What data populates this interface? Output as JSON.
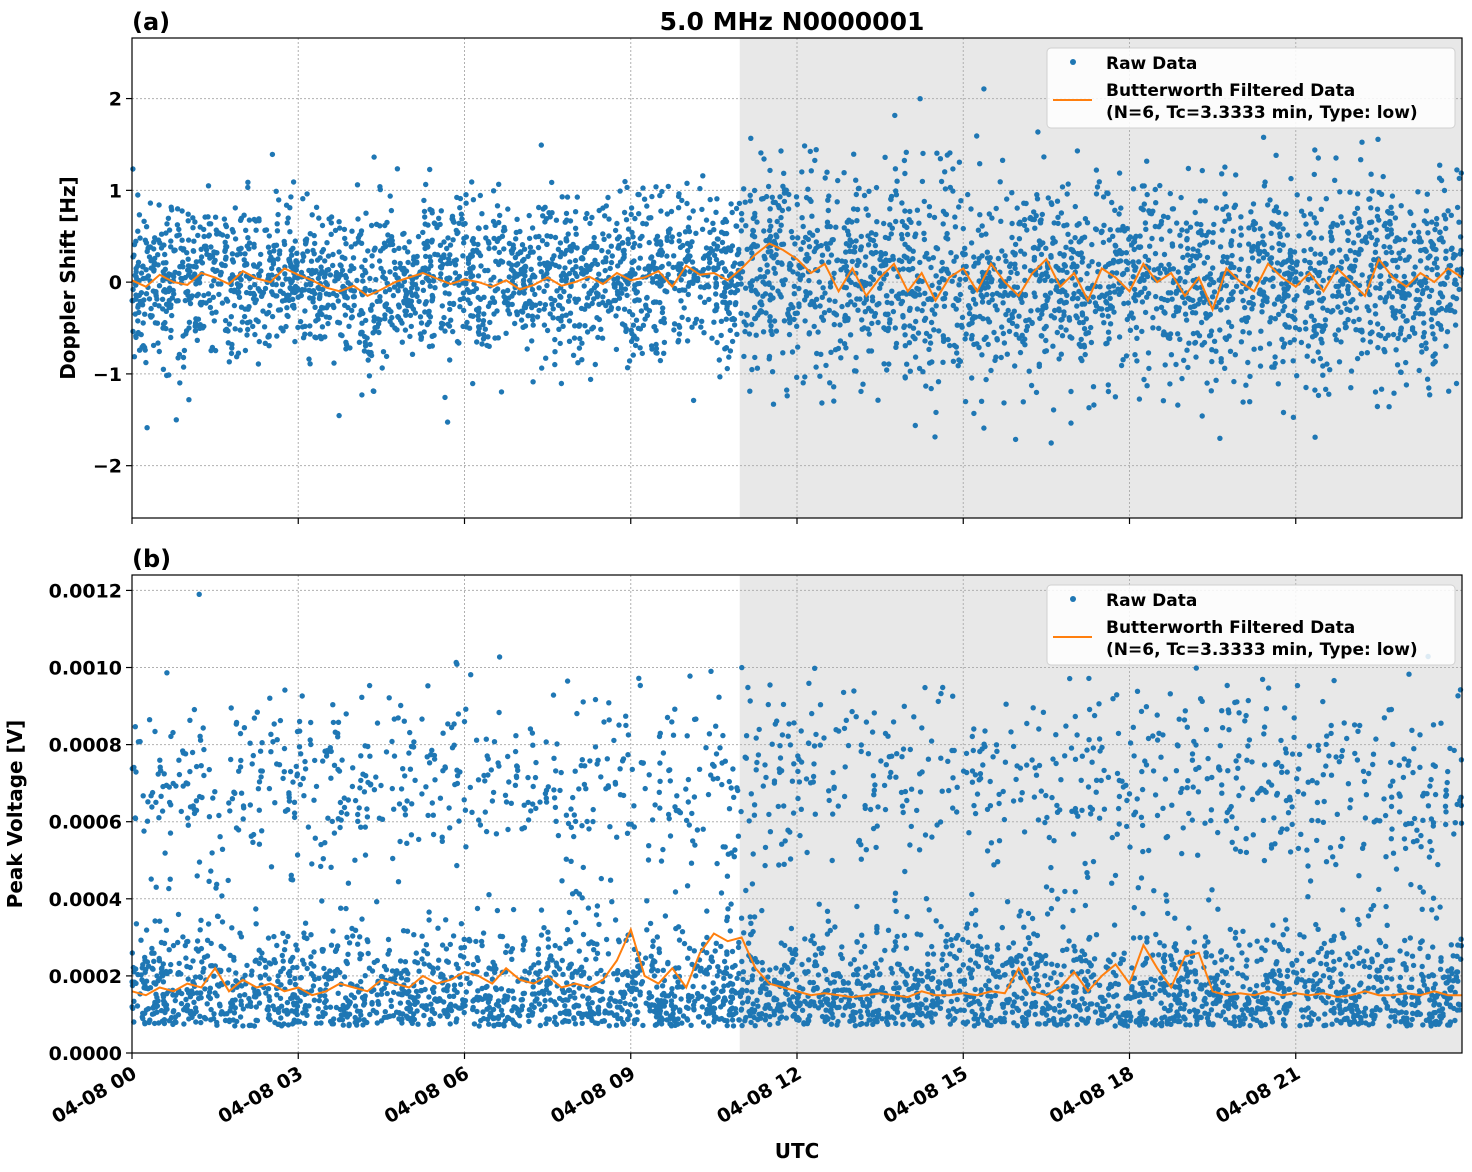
{
  "title": "5.0 MHz N0000001",
  "colors": {
    "raw": "#1f77b4",
    "filtered": "#ff7f0e",
    "shade": "#e8e8e8"
  },
  "chart_data": [
    {
      "type": "scatter",
      "panel_label": "(a)",
      "ylabel": "Doppler Shift [Hz]",
      "ylim": [
        -2.57,
        2.66
      ],
      "xlim": [
        "04-08 00:00",
        "04-09 00:00"
      ],
      "grid": true,
      "legend_placement": "top-right",
      "shaded_interval": [
        "10:58",
        "24:00"
      ],
      "y_ticks": [
        {
          "v": 2,
          "label": "2"
        },
        {
          "v": 1,
          "label": "1"
        },
        {
          "v": 0,
          "label": "0"
        },
        {
          "v": -1,
          "label": "−1"
        },
        {
          "v": -2,
          "label": "−2"
        }
      ],
      "raw_data": {
        "name": "Raw Data",
        "core_range": [
          -0.9,
          0.9
        ],
        "extent": [
          -2.3,
          2.4
        ]
      },
      "filtered": {
        "name": "Butterworth Filtered Data",
        "name_line2": "(N=6, Tc=3.3333 min, Type: low)",
        "step_minutes": 15,
        "values": [
          0.02,
          -0.05,
          0.08,
          0.0,
          -0.03,
          0.1,
          0.05,
          -0.02,
          0.12,
          0.04,
          0.0,
          0.15,
          0.08,
          0.02,
          -0.06,
          -0.1,
          -0.04,
          -0.15,
          -0.08,
          0.0,
          0.05,
          0.1,
          0.04,
          -0.02,
          0.03,
          0.0,
          -0.05,
          0.02,
          -0.08,
          -0.03,
          0.05,
          -0.04,
          0.0,
          0.06,
          -0.02,
          0.1,
          0.02,
          0.05,
          0.12,
          -0.05,
          0.18,
          0.08,
          0.1,
          0.02,
          0.15,
          0.3,
          0.42,
          0.35,
          0.25,
          0.1,
          0.2,
          -0.1,
          0.15,
          -0.15,
          0.05,
          0.2,
          -0.1,
          0.1,
          -0.2,
          0.05,
          0.15,
          -0.1,
          0.2,
          0.0,
          -0.15,
          0.1,
          0.25,
          -0.05,
          0.1,
          -0.2,
          0.15,
          0.05,
          -0.1,
          0.2,
          0.0,
          0.1,
          -0.15,
          0.05,
          -0.3,
          0.15,
          0.0,
          -0.1,
          0.2,
          0.05,
          -0.05,
          0.1,
          -0.1,
          0.15,
          0.0,
          -0.15,
          0.25,
          0.05,
          -0.05,
          0.1,
          0.0,
          0.15,
          0.05
        ]
      }
    },
    {
      "type": "scatter",
      "panel_label": "(b)",
      "ylabel": "Peak Voltage [V]",
      "xlabel": "UTC",
      "ylim": [
        0,
        0.00124
      ],
      "xlim": [
        "04-08 00:00",
        "04-09 00:00"
      ],
      "grid": true,
      "legend_placement": "top-right",
      "shaded_interval": [
        "10:58",
        "24:00"
      ],
      "y_ticks": [
        {
          "v": 0,
          "label": "0.0000"
        },
        {
          "v": 0.0002,
          "label": "0.0002"
        },
        {
          "v": 0.0004,
          "label": "0.0004"
        },
        {
          "v": 0.0006,
          "label": "0.0006"
        },
        {
          "v": 0.0008,
          "label": "0.0008"
        },
        {
          "v": 0.001,
          "label": "0.0010"
        },
        {
          "v": 0.0012,
          "label": "0.0012"
        }
      ],
      "raw_data": {
        "name": "Raw Data",
        "core_range": [
          7e-05,
          0.00035
        ],
        "upper_cloud_range": [
          0.0005,
          0.0009
        ],
        "extent": [
          6e-05,
          0.00119
        ]
      },
      "filtered": {
        "name": "Butterworth Filtered Data",
        "name_line2": "(N=6, Tc=3.3333 min, Type: low)",
        "step_minutes": 15,
        "values": [
          0.00016,
          0.00015,
          0.00017,
          0.00016,
          0.00018,
          0.00017,
          0.00022,
          0.00016,
          0.00019,
          0.00017,
          0.00018,
          0.00016,
          0.00017,
          0.00015,
          0.00016,
          0.00018,
          0.00017,
          0.00016,
          0.00019,
          0.00018,
          0.00017,
          0.0002,
          0.00018,
          0.00019,
          0.00021,
          0.0002,
          0.00018,
          0.00022,
          0.00019,
          0.00018,
          0.0002,
          0.00017,
          0.00018,
          0.00017,
          0.00019,
          0.00024,
          0.00032,
          0.0002,
          0.00018,
          0.00022,
          0.00017,
          0.00026,
          0.00031,
          0.00029,
          0.0003,
          0.00022,
          0.00018,
          0.00017,
          0.00016,
          0.00015,
          0.000155,
          0.00015,
          0.000145,
          0.00015,
          0.000155,
          0.00015,
          0.000145,
          0.00016,
          0.00015,
          0.00015,
          0.000155,
          0.00015,
          0.00016,
          0.000155,
          0.00022,
          0.00016,
          0.00015,
          0.00017,
          0.00021,
          0.00016,
          0.0002,
          0.00023,
          0.00018,
          0.00028,
          0.00022,
          0.00017,
          0.00025,
          0.00026,
          0.00016,
          0.00015,
          0.000155,
          0.00015,
          0.00016,
          0.00015,
          0.000155,
          0.00015,
          0.000155,
          0.000145,
          0.00015,
          0.00016,
          0.00015,
          0.00015,
          0.000155,
          0.00015,
          0.00016,
          0.00015,
          0.00015
        ]
      }
    }
  ],
  "x_ticks": [
    {
      "label": "04-08 00",
      "time": "00:00"
    },
    {
      "label": "04-08 03",
      "time": "03:00"
    },
    {
      "label": "04-08 06",
      "time": "06:00"
    },
    {
      "label": "04-08 09",
      "time": "09:00"
    },
    {
      "label": "04-08 12",
      "time": "12:00"
    },
    {
      "label": "04-08 15",
      "time": "15:00"
    },
    {
      "label": "04-08 18",
      "time": "18:00"
    },
    {
      "label": "04-08 21",
      "time": "21:00"
    }
  ]
}
